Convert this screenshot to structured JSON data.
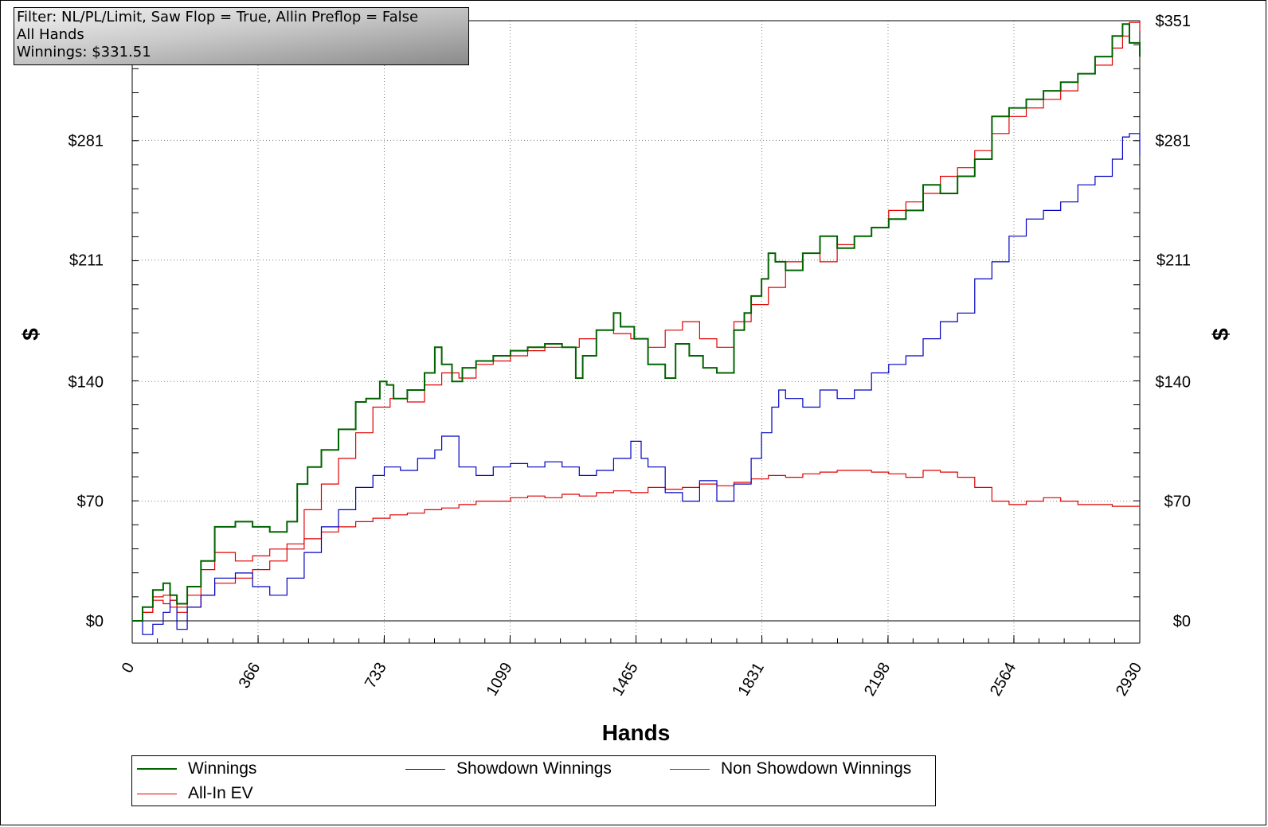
{
  "infobox": {
    "filter": "Filter: NL/PL/Limit, Saw Flop = True, Allin Preflop = False",
    "subset": "All Hands",
    "winnings": "Winnings: $331.51"
  },
  "chart_data": {
    "type": "line",
    "xlabel": "Hands",
    "ylabel": "$",
    "xlim": [
      0,
      2930
    ],
    "ylim": [
      -12,
      351
    ],
    "x_ticks": [
      "0",
      "366",
      "733",
      "1099",
      "1465",
      "1831",
      "2198",
      "2564",
      "2930"
    ],
    "y_ticks": [
      "$0",
      "$70",
      "$140",
      "$211",
      "$281",
      "$351"
    ],
    "y_tick_values": [
      0,
      70,
      140,
      211,
      281,
      351
    ],
    "grid": true,
    "legend_position": "bottom",
    "colors": {
      "Winnings": "#006400",
      "Showdown Winnings": "#0000c0",
      "Non Showdown Winnings": "#e00000",
      "All-In EV": "#e00000"
    },
    "series": [
      {
        "name": "Winnings",
        "x": [
          0,
          30,
          60,
          90,
          110,
          130,
          160,
          200,
          240,
          300,
          350,
          400,
          450,
          480,
          510,
          550,
          600,
          650,
          680,
          720,
          740,
          760,
          800,
          850,
          880,
          900,
          930,
          960,
          1000,
          1050,
          1100,
          1150,
          1200,
          1250,
          1290,
          1310,
          1350,
          1400,
          1420,
          1460,
          1500,
          1550,
          1580,
          1620,
          1660,
          1700,
          1750,
          1780,
          1800,
          1830,
          1850,
          1870,
          1900,
          1950,
          2000,
          2050,
          2100,
          2150,
          2200,
          2250,
          2300,
          2350,
          2400,
          2450,
          2500,
          2550,
          2600,
          2650,
          2700,
          2750,
          2800,
          2850,
          2880,
          2900,
          2930
        ],
        "y": [
          0,
          8,
          18,
          22,
          15,
          10,
          20,
          35,
          55,
          58,
          55,
          52,
          58,
          80,
          90,
          100,
          112,
          128,
          130,
          140,
          138,
          130,
          135,
          145,
          160,
          150,
          140,
          148,
          152,
          155,
          158,
          160,
          162,
          160,
          142,
          155,
          170,
          180,
          172,
          165,
          150,
          142,
          162,
          155,
          148,
          145,
          170,
          180,
          190,
          200,
          215,
          210,
          205,
          215,
          225,
          218,
          225,
          230,
          235,
          240,
          255,
          250,
          260,
          270,
          295,
          300,
          305,
          310,
          315,
          320,
          330,
          342,
          349,
          338,
          330
        ]
      },
      {
        "name": "Showdown Winnings",
        "x": [
          0,
          30,
          60,
          90,
          110,
          130,
          160,
          200,
          240,
          300,
          350,
          400,
          450,
          500,
          550,
          600,
          650,
          700,
          733,
          780,
          830,
          880,
          900,
          950,
          1000,
          1050,
          1100,
          1150,
          1200,
          1250,
          1300,
          1350,
          1400,
          1450,
          1480,
          1500,
          1550,
          1600,
          1650,
          1700,
          1750,
          1800,
          1830,
          1860,
          1880,
          1900,
          1950,
          2000,
          2050,
          2100,
          2150,
          2200,
          2250,
          2300,
          2350,
          2400,
          2450,
          2500,
          2550,
          2600,
          2650,
          2700,
          2750,
          2800,
          2850,
          2880,
          2900,
          2930
        ],
        "y": [
          0,
          -8,
          -2,
          5,
          12,
          -5,
          8,
          15,
          25,
          28,
          20,
          15,
          25,
          40,
          55,
          65,
          78,
          85,
          90,
          88,
          95,
          100,
          108,
          90,
          85,
          90,
          92,
          90,
          93,
          90,
          85,
          88,
          95,
          105,
          95,
          90,
          75,
          70,
          82,
          70,
          80,
          95,
          110,
          125,
          135,
          130,
          125,
          135,
          130,
          135,
          145,
          150,
          155,
          165,
          175,
          180,
          200,
          210,
          225,
          235,
          240,
          245,
          255,
          260,
          270,
          283,
          285,
          272
        ]
      },
      {
        "name": "Non Showdown Winnings",
        "x": [
          0,
          30,
          60,
          90,
          110,
          130,
          160,
          200,
          240,
          300,
          350,
          400,
          450,
          500,
          550,
          600,
          650,
          700,
          750,
          800,
          850,
          900,
          950,
          1000,
          1050,
          1100,
          1150,
          1200,
          1250,
          1300,
          1350,
          1400,
          1450,
          1500,
          1550,
          1600,
          1650,
          1700,
          1750,
          1800,
          1850,
          1900,
          1950,
          2000,
          2050,
          2100,
          2150,
          2200,
          2250,
          2300,
          2350,
          2400,
          2450,
          2500,
          2550,
          2600,
          2650,
          2700,
          2750,
          2800,
          2850,
          2900,
          2930
        ],
        "y": [
          0,
          5,
          12,
          10,
          8,
          5,
          8,
          15,
          22,
          25,
          30,
          35,
          42,
          48,
          52,
          55,
          58,
          60,
          62,
          63,
          65,
          66,
          68,
          70,
          70,
          72,
          73,
          72,
          74,
          73,
          75,
          76,
          75,
          78,
          77,
          78,
          80,
          79,
          81,
          83,
          85,
          84,
          86,
          87,
          88,
          88,
          87,
          86,
          84,
          88,
          87,
          84,
          78,
          70,
          68,
          70,
          72,
          70,
          68,
          68,
          67,
          67,
          67
        ]
      },
      {
        "name": "All-In EV",
        "x": [
          0,
          30,
          60,
          90,
          110,
          130,
          160,
          200,
          240,
          300,
          350,
          400,
          450,
          500,
          550,
          600,
          650,
          700,
          750,
          800,
          850,
          900,
          950,
          1000,
          1050,
          1100,
          1150,
          1200,
          1250,
          1300,
          1350,
          1400,
          1450,
          1500,
          1550,
          1600,
          1650,
          1700,
          1750,
          1800,
          1850,
          1900,
          1950,
          2000,
          2050,
          2100,
          2150,
          2200,
          2250,
          2300,
          2350,
          2400,
          2450,
          2500,
          2550,
          2600,
          2650,
          2700,
          2750,
          2800,
          2850,
          2880,
          2900,
          2930
        ],
        "y": [
          0,
          5,
          14,
          15,
          12,
          8,
          15,
          30,
          40,
          35,
          38,
          42,
          45,
          65,
          80,
          95,
          110,
          125,
          130,
          128,
          138,
          145,
          142,
          150,
          152,
          155,
          158,
          160,
          160,
          165,
          170,
          168,
          165,
          160,
          170,
          175,
          165,
          160,
          175,
          185,
          195,
          210,
          215,
          210,
          220,
          225,
          230,
          240,
          245,
          250,
          260,
          265,
          275,
          285,
          295,
          300,
          305,
          310,
          320,
          325,
          335,
          342,
          350,
          345
        ]
      }
    ]
  },
  "legend": {
    "items": [
      "Winnings",
      "Showdown Winnings",
      "Non Showdown Winnings",
      "All-In EV"
    ]
  }
}
